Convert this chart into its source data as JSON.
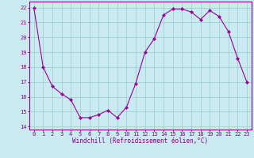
{
  "x": [
    0,
    1,
    2,
    3,
    4,
    5,
    6,
    7,
    8,
    9,
    10,
    11,
    12,
    13,
    14,
    15,
    16,
    17,
    18,
    19,
    20,
    21,
    22,
    23
  ],
  "y": [
    22,
    18,
    16.7,
    16.2,
    15.8,
    14.6,
    14.6,
    14.8,
    15.1,
    14.6,
    15.3,
    16.9,
    19.0,
    19.9,
    21.5,
    21.9,
    21.9,
    21.7,
    21.2,
    21.8,
    21.4,
    20.4,
    18.6,
    17.0
  ],
  "line_color": "#990099",
  "marker": "D",
  "marker_size": 2.0,
  "bg_color": "#c8eaf0",
  "grid_color": "#99cccc",
  "xlabel": "Windchill (Refroidissement éolien,°C)",
  "xlabel_color": "#880088",
  "tick_color": "#880088",
  "spine_color": "#880088",
  "ylim": [
    13.8,
    22.4
  ],
  "xlim": [
    -0.5,
    23.5
  ],
  "yticks": [
    14,
    15,
    16,
    17,
    18,
    19,
    20,
    21,
    22
  ],
  "xticks": [
    0,
    1,
    2,
    3,
    4,
    5,
    6,
    7,
    8,
    9,
    10,
    11,
    12,
    13,
    14,
    15,
    16,
    17,
    18,
    19,
    20,
    21,
    22,
    23
  ],
  "tick_fontsize": 5.0,
  "xlabel_fontsize": 5.5
}
